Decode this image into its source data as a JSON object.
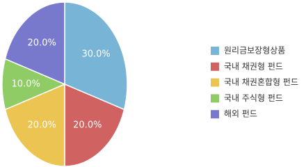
{
  "chart_data": {
    "type": "pie",
    "categories": [
      "원리금보장형상품",
      "국내 채권형 펀드",
      "국내 채권혼합형 펀드",
      "국내 주식형 펀드",
      "해외 펀드"
    ],
    "values": [
      30,
      20,
      20,
      10,
      20
    ],
    "value_labels": [
      "30.0%",
      "20.0%",
      "20.0%",
      "10.0%",
      "20.0%"
    ],
    "colors": [
      "#78b4d6",
      "#d06262",
      "#ecc452",
      "#8fcc66",
      "#7878cc"
    ],
    "legend": "right"
  }
}
